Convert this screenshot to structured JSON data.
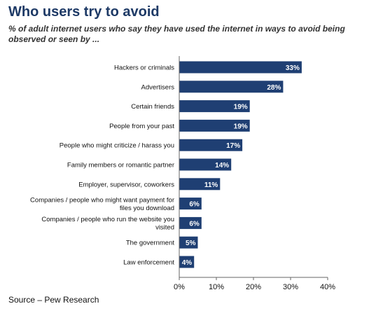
{
  "title": "Who users try to avoid",
  "subtitle": "% of adult internet users who say they have used the internet in ways to avoid being observed or seen by ...",
  "source": "Source – Pew Research",
  "colors": {
    "bar": "#1f3f73",
    "axis": "#666666",
    "title": "#1e3a66"
  },
  "chart_data": {
    "type": "bar",
    "orientation": "horizontal",
    "categories": [
      "Hackers or criminals",
      "Advertisers",
      "Certain friends",
      "People from your past",
      "People who might criticize / harass you",
      "Family members or romantic partner",
      "Employer, supervisor, coworkers",
      "Companies / people who might want payment for files you download",
      "Companies / people who run the website you visited",
      "The government",
      "Law enforcement"
    ],
    "category_lines": [
      [
        "Hackers or criminals"
      ],
      [
        "Advertisers"
      ],
      [
        "Certain friends"
      ],
      [
        "People from your past"
      ],
      [
        "People who might criticize / harass you"
      ],
      [
        "Family members or romantic partner"
      ],
      [
        "Employer, supervisor, coworkers"
      ],
      [
        "Companies / people who might want payment for",
        "files you download"
      ],
      [
        "Companies / people who run the website you",
        "visited"
      ],
      [
        "The government"
      ],
      [
        "Law enforcement"
      ]
    ],
    "values": [
      33,
      28,
      19,
      19,
      17,
      14,
      11,
      6,
      6,
      5,
      4
    ],
    "value_labels": [
      "33%",
      "28%",
      "19%",
      "19%",
      "17%",
      "14%",
      "11%",
      "6%",
      "6%",
      "5%",
      "4%"
    ],
    "xlim": [
      0,
      40
    ],
    "xticks": [
      0,
      10,
      20,
      30,
      40
    ],
    "xtick_labels": [
      "0%",
      "10%",
      "20%",
      "30%",
      "40%"
    ],
    "grid": false,
    "legend": "none"
  }
}
